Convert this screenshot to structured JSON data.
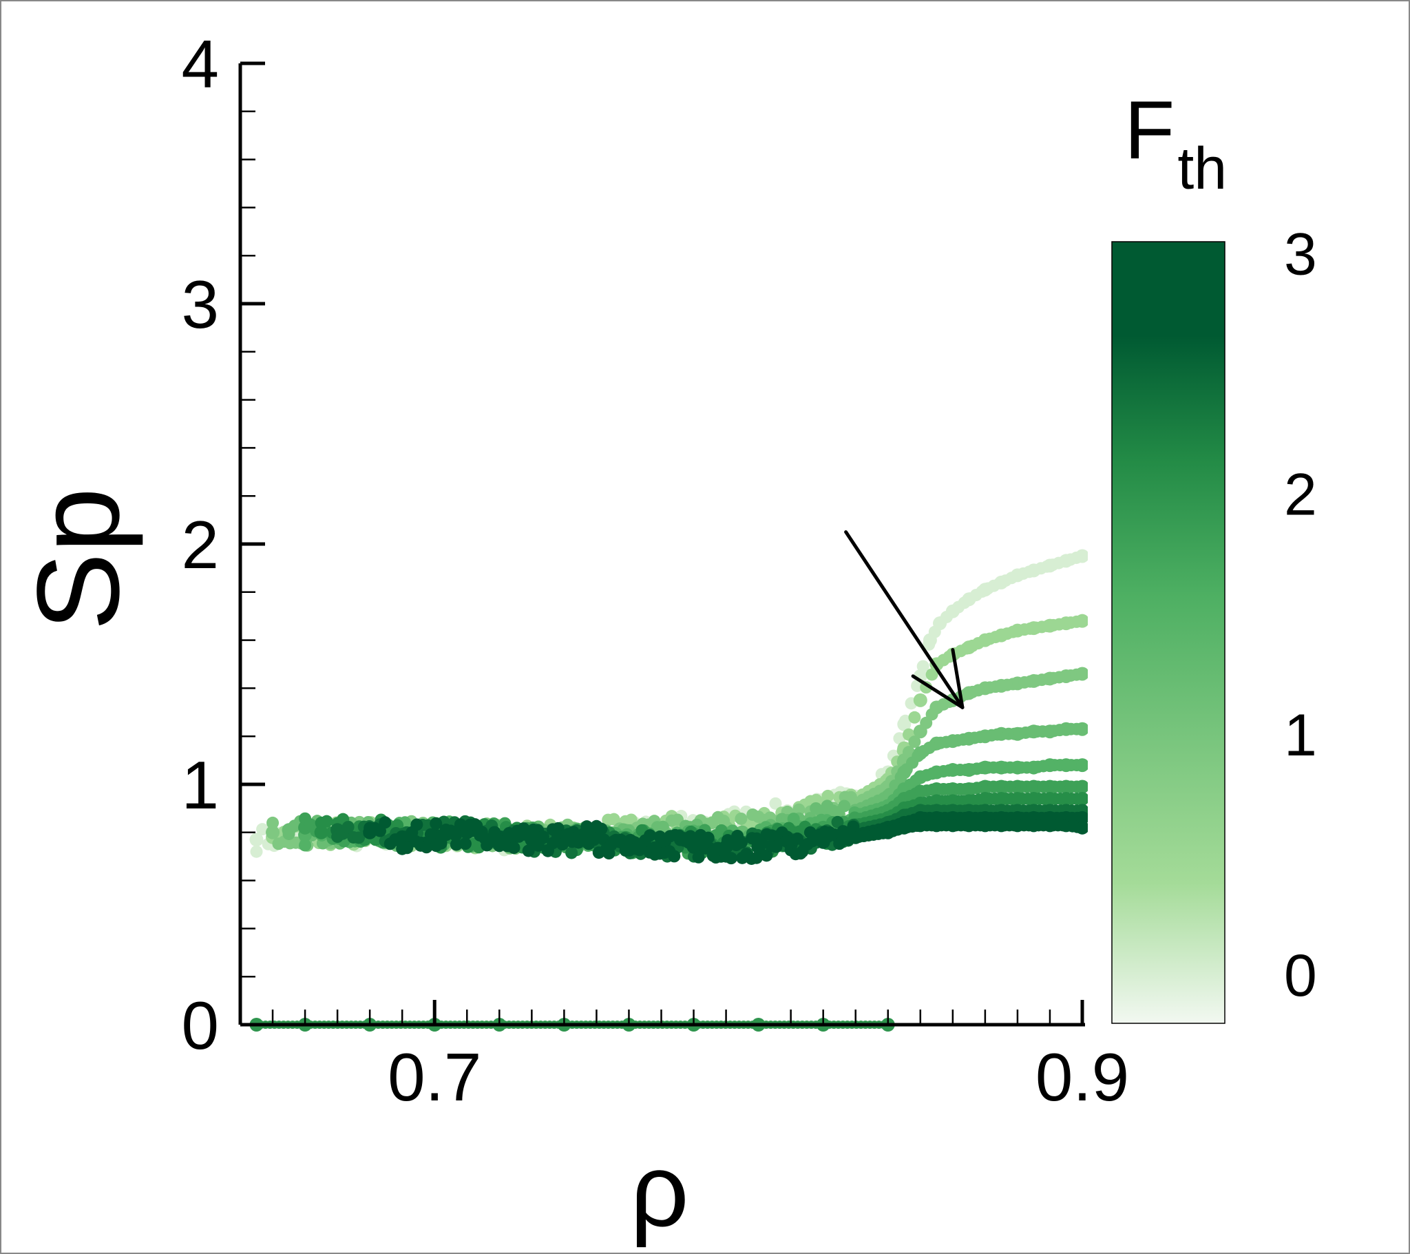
{
  "chart_data": {
    "type": "scatter",
    "title": "",
    "xlabel": "ρ",
    "ylabel": "Sp",
    "xlim": [
      0.64,
      0.9
    ],
    "ylim": [
      0,
      4
    ],
    "x_ticks": [
      0.7,
      0.9
    ],
    "x_tick_labels": [
      "0.7",
      "0.9"
    ],
    "y_ticks": [
      0,
      1,
      2,
      3,
      4
    ],
    "y_tick_labels": [
      "0",
      "1",
      "2",
      "3",
      "4"
    ],
    "grid": false,
    "legend": "none",
    "colorbar": {
      "label_main": "F",
      "label_sub": "th",
      "range": [
        -0.2,
        3.05
      ],
      "ticks": [
        0,
        1,
        2,
        3
      ],
      "tick_labels": [
        "0",
        "1",
        "2",
        "3"
      ],
      "colors": [
        "#f2f8f1",
        "#a4db98",
        "#4daf62",
        "#238b46",
        "#005a32",
        "#005a32"
      ],
      "color_stops": [
        0,
        0.18,
        0.55,
        0.72,
        0.88,
        1
      ]
    },
    "series": [
      {
        "f": 0.0,
        "x": [
          0.645,
          0.66,
          0.68,
          0.7,
          0.72,
          0.74,
          0.76,
          0.78,
          0.8,
          0.82,
          0.83,
          0.84,
          0.845,
          0.85,
          0.853,
          0.856,
          0.86,
          0.865,
          0.87,
          0.875,
          0.88,
          0.885,
          0.89,
          0.895,
          0.9
        ],
        "y": [
          0.77,
          0.78,
          0.79,
          0.78,
          0.77,
          0.78,
          0.8,
          0.83,
          0.86,
          0.9,
          0.95,
          1.05,
          1.25,
          1.45,
          1.6,
          1.67,
          1.72,
          1.77,
          1.81,
          1.84,
          1.87,
          1.89,
          1.91,
          1.93,
          1.95
        ]
      },
      {
        "f": 0.5,
        "x": [
          0.65,
          0.67,
          0.69,
          0.71,
          0.73,
          0.75,
          0.77,
          0.79,
          0.81,
          0.82,
          0.83,
          0.84,
          0.845,
          0.85,
          0.855,
          0.86,
          0.865,
          0.87,
          0.875,
          0.88,
          0.885,
          0.89,
          0.895,
          0.9
        ],
        "y": [
          0.78,
          0.8,
          0.79,
          0.78,
          0.79,
          0.8,
          0.82,
          0.84,
          0.87,
          0.9,
          0.94,
          1.02,
          1.15,
          1.35,
          1.5,
          1.54,
          1.57,
          1.6,
          1.62,
          1.64,
          1.65,
          1.66,
          1.67,
          1.68
        ]
      },
      {
        "f": 0.9,
        "x": [
          0.65,
          0.67,
          0.69,
          0.71,
          0.73,
          0.75,
          0.77,
          0.79,
          0.81,
          0.82,
          0.83,
          0.84,
          0.845,
          0.85,
          0.855,
          0.86,
          0.865,
          0.87,
          0.875,
          0.88,
          0.885,
          0.89,
          0.895,
          0.9
        ],
        "y": [
          0.8,
          0.79,
          0.8,
          0.79,
          0.78,
          0.79,
          0.8,
          0.82,
          0.85,
          0.88,
          0.92,
          0.99,
          1.1,
          1.22,
          1.32,
          1.35,
          1.38,
          1.4,
          1.41,
          1.42,
          1.43,
          1.44,
          1.45,
          1.46
        ]
      },
      {
        "f": 1.2,
        "x": [
          0.655,
          0.675,
          0.695,
          0.715,
          0.735,
          0.755,
          0.775,
          0.795,
          0.81,
          0.82,
          0.83,
          0.84,
          0.845,
          0.85,
          0.855,
          0.86,
          0.865,
          0.87,
          0.875,
          0.88,
          0.885,
          0.89,
          0.895,
          0.9
        ],
        "y": [
          0.81,
          0.8,
          0.79,
          0.8,
          0.78,
          0.77,
          0.78,
          0.8,
          0.83,
          0.86,
          0.89,
          0.95,
          1.05,
          1.13,
          1.17,
          1.18,
          1.19,
          1.2,
          1.21,
          1.21,
          1.22,
          1.22,
          1.23,
          1.23
        ]
      },
      {
        "f": 1.5,
        "x": [
          0.66,
          0.68,
          0.7,
          0.72,
          0.74,
          0.76,
          0.78,
          0.8,
          0.81,
          0.82,
          0.83,
          0.84,
          0.845,
          0.85,
          0.855,
          0.86,
          0.865,
          0.87,
          0.875,
          0.88,
          0.885,
          0.89,
          0.895,
          0.9
        ],
        "y": [
          0.79,
          0.81,
          0.8,
          0.78,
          0.77,
          0.76,
          0.77,
          0.79,
          0.81,
          0.84,
          0.87,
          0.91,
          0.98,
          1.03,
          1.05,
          1.06,
          1.06,
          1.07,
          1.07,
          1.07,
          1.07,
          1.08,
          1.08,
          1.08
        ]
      },
      {
        "f": 1.8,
        "x": [
          0.66,
          0.68,
          0.7,
          0.72,
          0.74,
          0.76,
          0.78,
          0.8,
          0.81,
          0.82,
          0.83,
          0.84,
          0.845,
          0.85,
          0.855,
          0.86,
          0.865,
          0.87,
          0.875,
          0.88,
          0.885,
          0.89,
          0.895,
          0.9
        ],
        "y": [
          0.82,
          0.8,
          0.79,
          0.79,
          0.77,
          0.76,
          0.76,
          0.77,
          0.79,
          0.82,
          0.85,
          0.89,
          0.94,
          0.97,
          0.98,
          0.98,
          0.98,
          0.99,
          0.99,
          0.99,
          0.99,
          0.99,
          0.99,
          0.99
        ]
      },
      {
        "f": 2.1,
        "x": [
          0.665,
          0.685,
          0.705,
          0.725,
          0.745,
          0.765,
          0.785,
          0.8,
          0.81,
          0.82,
          0.83,
          0.84,
          0.845,
          0.85,
          0.855,
          0.86,
          0.865,
          0.87,
          0.875,
          0.88,
          0.885,
          0.89,
          0.895,
          0.9
        ],
        "y": [
          0.8,
          0.82,
          0.78,
          0.79,
          0.76,
          0.76,
          0.75,
          0.76,
          0.78,
          0.8,
          0.83,
          0.86,
          0.9,
          0.92,
          0.93,
          0.93,
          0.93,
          0.94,
          0.94,
          0.94,
          0.94,
          0.94,
          0.94,
          0.94
        ]
      },
      {
        "f": 2.4,
        "x": [
          0.67,
          0.69,
          0.71,
          0.73,
          0.75,
          0.77,
          0.79,
          0.8,
          0.81,
          0.82,
          0.83,
          0.84,
          0.845,
          0.85,
          0.855,
          0.86,
          0.865,
          0.87,
          0.875,
          0.88,
          0.885,
          0.89,
          0.895,
          0.9
        ],
        "y": [
          0.81,
          0.79,
          0.8,
          0.77,
          0.76,
          0.75,
          0.74,
          0.75,
          0.77,
          0.79,
          0.81,
          0.84,
          0.87,
          0.89,
          0.89,
          0.89,
          0.89,
          0.89,
          0.89,
          0.89,
          0.89,
          0.89,
          0.89,
          0.89
        ]
      },
      {
        "f": 2.7,
        "x": [
          0.68,
          0.7,
          0.72,
          0.74,
          0.76,
          0.78,
          0.79,
          0.8,
          0.81,
          0.82,
          0.83,
          0.84,
          0.845,
          0.85,
          0.855,
          0.86,
          0.865,
          0.87,
          0.875,
          0.88,
          0.885,
          0.89,
          0.895,
          0.9
        ],
        "y": [
          0.8,
          0.79,
          0.78,
          0.77,
          0.76,
          0.75,
          0.74,
          0.74,
          0.76,
          0.77,
          0.79,
          0.82,
          0.84,
          0.86,
          0.86,
          0.86,
          0.86,
          0.86,
          0.86,
          0.86,
          0.86,
          0.86,
          0.86,
          0.86
        ]
      },
      {
        "f": 3.0,
        "x": [
          0.69,
          0.71,
          0.73,
          0.75,
          0.76,
          0.77,
          0.78,
          0.79,
          0.8,
          0.81,
          0.82,
          0.83,
          0.84,
          0.845,
          0.85,
          0.855,
          0.86,
          0.865,
          0.87,
          0.875,
          0.88,
          0.885,
          0.89,
          0.895,
          0.9
        ],
        "y": [
          0.78,
          0.8,
          0.77,
          0.78,
          0.76,
          0.75,
          0.74,
          0.74,
          0.74,
          0.75,
          0.76,
          0.78,
          0.8,
          0.82,
          0.83,
          0.83,
          0.83,
          0.83,
          0.83,
          0.83,
          0.83,
          0.83,
          0.83,
          0.83,
          0.82
        ]
      },
      {
        "f": 2.0,
        "x": [
          0.645,
          0.66,
          0.68,
          0.7,
          0.72,
          0.74,
          0.76,
          0.78,
          0.8,
          0.82,
          0.84
        ],
        "y": [
          0,
          0,
          0,
          0,
          0,
          0,
          0,
          0,
          0,
          0,
          0
        ]
      }
    ],
    "annotations": [
      {
        "type": "arrow",
        "from": [
          0.827,
          2.05
        ],
        "to": [
          0.863,
          1.32
        ],
        "meaning": "increasing F_th"
      }
    ]
  }
}
